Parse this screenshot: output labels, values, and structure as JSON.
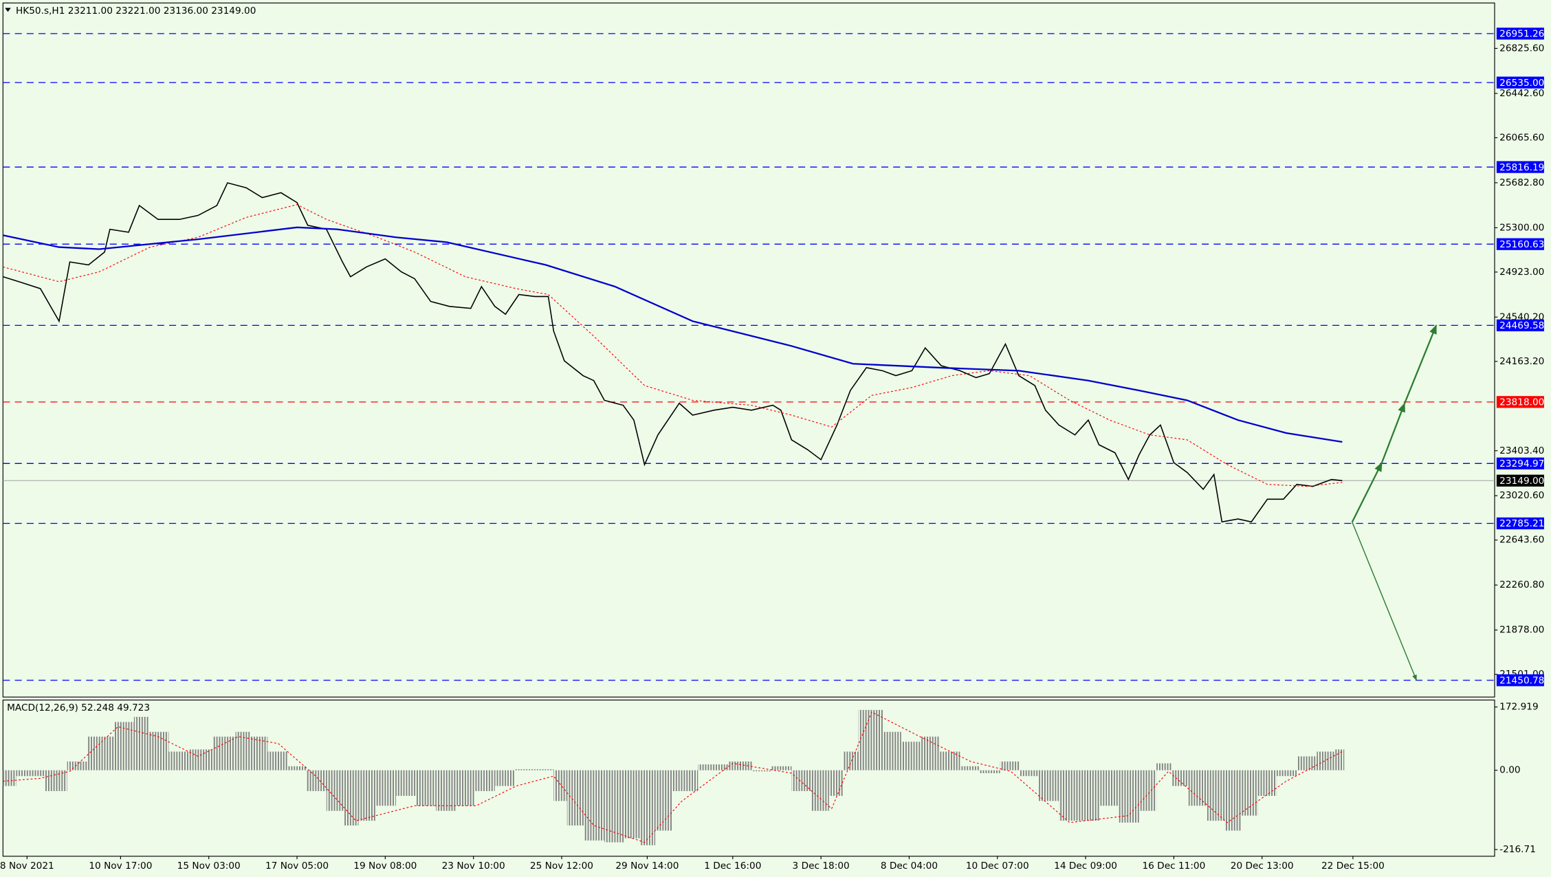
{
  "chart_data": [
    {
      "type": "line",
      "title": "HK50.s,H1  23211.00 23221.00 23136.00 23149.00",
      "xlim": [
        0,
        558
      ],
      "ylim": [
        21308,
        27212
      ],
      "xticks": [
        {
          "value": 9,
          "label": "8 Nov 2021"
        },
        {
          "value": 44,
          "label": "10 Nov 17:00"
        },
        {
          "value": 77,
          "label": "15 Nov 03:00"
        },
        {
          "value": 110,
          "label": "17 Nov 05:00"
        },
        {
          "value": 143,
          "label": "19 Nov 08:00"
        },
        {
          "value": 176,
          "label": "23 Nov 10:00"
        },
        {
          "value": 209,
          "label": "25 Nov 12:00"
        },
        {
          "value": 241,
          "label": "29 Nov 14:00"
        },
        {
          "value": 273,
          "label": "1 Dec 16:00"
        },
        {
          "value": 306,
          "label": "3 Dec 18:00"
        },
        {
          "value": 339,
          "label": "8 Dec 04:00"
        },
        {
          "value": 372,
          "label": "10 Dec 07:00"
        },
        {
          "value": 405,
          "label": "14 Dec 09:00"
        },
        {
          "value": 438,
          "label": "16 Dec 11:00"
        },
        {
          "value": 471,
          "label": "20 Dec 13:00"
        },
        {
          "value": 505,
          "label": "22 Dec 15:00"
        }
      ],
      "yticks": [
        {
          "value": 26825.6,
          "label": "26825.60"
        },
        {
          "value": 26442.6,
          "label": "26442.60"
        },
        {
          "value": 26065.6,
          "label": "26065.60"
        },
        {
          "value": 25682.8,
          "label": "25682.80"
        },
        {
          "value": 25300,
          "label": "25300.00"
        },
        {
          "value": 24923,
          "label": "24923.00"
        },
        {
          "value": 24540.2,
          "label": "24540.20"
        },
        {
          "value": 24163.2,
          "label": "24163.20"
        },
        {
          "value": 23403.4,
          "label": "23403.40"
        },
        {
          "value": 23020.6,
          "label": "23020.60"
        },
        {
          "value": 22643.6,
          "label": "22643.60"
        },
        {
          "value": 22260.8,
          "label": "22260.80"
        },
        {
          "value": 21878,
          "label": "21878.00"
        },
        {
          "value": 21501,
          "label": "21501.00"
        }
      ],
      "levels": [
        {
          "value": 26951.26,
          "color": "#0000ff"
        },
        {
          "value": 26535,
          "label": "26535.00",
          "color": "#0000ff"
        },
        {
          "value": 25816.19,
          "color": "#0000ff"
        },
        {
          "value": 25160.63,
          "color": "#0000ff"
        },
        {
          "value": 24469.58,
          "color": "#0000ff"
        },
        {
          "value": 23818,
          "label": "23818.00",
          "color": "#ff0000"
        },
        {
          "value": 23294.97,
          "color": "#0000ff"
        },
        {
          "value": 22785.21,
          "color": "#0000ff"
        },
        {
          "value": 21450.78,
          "color": "#0000ff"
        }
      ],
      "current": {
        "value": 23149,
        "label": "23149.00",
        "color": "#000000"
      },
      "series": [
        {
          "color": "#000000",
          "style": "solid",
          "width": 1.1,
          "x": [
            0,
            6,
            14,
            21,
            25,
            32,
            38,
            40,
            47,
            51,
            58,
            66,
            73,
            80,
            84,
            91,
            97,
            104,
            110,
            114,
            121,
            127,
            130,
            136,
            143,
            149,
            154,
            160,
            167,
            175,
            179,
            184,
            188,
            193,
            199,
            204,
            206,
            210,
            217,
            221,
            225,
            232,
            236,
            240,
            245,
            253,
            258,
            266,
            273,
            280,
            288,
            291,
            295,
            301,
            306,
            312,
            317,
            323,
            329,
            334,
            340,
            345,
            351,
            358,
            364,
            369,
            375,
            380,
            386,
            390,
            395,
            401,
            406,
            410,
            416,
            421,
            425,
            429,
            433,
            438,
            443,
            449,
            453,
            456,
            462,
            467,
            473,
            479,
            484,
            490,
            497,
            501
          ],
          "values": [
            24883,
            24841,
            24782,
            24505,
            25009,
            24984,
            25093,
            25287,
            25262,
            25489,
            25371,
            25371,
            25405,
            25489,
            25682,
            25640,
            25556,
            25598,
            25514,
            25321,
            25287,
            25009,
            24883,
            24967,
            25035,
            24925,
            24866,
            24673,
            24631,
            24614,
            24799,
            24631,
            24564,
            24732,
            24715,
            24715,
            24421,
            24168,
            24042,
            24000,
            23832,
            23790,
            23664,
            23285,
            23538,
            23807,
            23706,
            23748,
            23773,
            23748,
            23790,
            23748,
            23496,
            23412,
            23327,
            23622,
            23916,
            24110,
            24084,
            24042,
            24084,
            24278,
            24126,
            24084,
            24025,
            24059,
            24311,
            24042,
            23958,
            23748,
            23622,
            23538,
            23664,
            23454,
            23386,
            23159,
            23369,
            23538,
            23622,
            23302,
            23218,
            23075,
            23201,
            22798,
            22823,
            22798,
            22991,
            22991,
            23117,
            23100,
            23159,
            23149
          ]
        },
        {
          "color": "#ff0000",
          "style": "dotted",
          "width": 0.8,
          "x": [
            0,
            21,
            36,
            55,
            73,
            91,
            110,
            121,
            140,
            154,
            173,
            192,
            204,
            221,
            240,
            258,
            280,
            295,
            310,
            325,
            340,
            355,
            369,
            384,
            399,
            414,
            429,
            443,
            458,
            473,
            488,
            501
          ],
          "values": [
            24967,
            24841,
            24925,
            25135,
            25219,
            25388,
            25497,
            25371,
            25219,
            25093,
            24883,
            24782,
            24732,
            24378,
            23958,
            23832,
            23790,
            23706,
            23605,
            23874,
            23941,
            24042,
            24084,
            24042,
            23832,
            23664,
            23538,
            23496,
            23285,
            23117,
            23100,
            23134
          ]
        },
        {
          "color": "#0000cd",
          "style": "solid",
          "width": 1.6,
          "x": [
            0,
            21,
            36,
            73,
            110,
            125,
            147,
            166,
            203,
            229,
            258,
            295,
            318,
            351,
            380,
            406,
            425,
            443,
            462,
            480,
            501
          ],
          "values": [
            25236,
            25135,
            25118,
            25202,
            25303,
            25287,
            25219,
            25177,
            24984,
            24799,
            24505,
            24294,
            24143,
            24109,
            24084,
            24000,
            23916,
            23832,
            23664,
            23554,
            23478
          ]
        }
      ]
    },
    {
      "type": "bar",
      "title": "MACD(12,26,9) 52.248 49.723",
      "xlim": [
        0,
        558
      ],
      "ylim": [
        -235,
        192
      ],
      "yticks": [
        172.919,
        {
          "value": 0,
          "label": "0.00"
        },
        -216.71
      ],
      "color": "#808080",
      "x": [
        0,
        10,
        21,
        27,
        36,
        47,
        51,
        58,
        66,
        73,
        84,
        90,
        95,
        103,
        110,
        117,
        125,
        130,
        136,
        143,
        151,
        158,
        166,
        173,
        180,
        188,
        195,
        204,
        208,
        214,
        221,
        229,
        236,
        241,
        247,
        254,
        266,
        277,
        284,
        291,
        299,
        306,
        312,
        317,
        323,
        327,
        332,
        340,
        347,
        354,
        362,
        369,
        377,
        384,
        391,
        399,
        406,
        414,
        421,
        429,
        434,
        440,
        447,
        454,
        460,
        466,
        473,
        480,
        488,
        495,
        501
      ],
      "values": [
        -43,
        -16,
        -57,
        24,
        92,
        132,
        146,
        105,
        51,
        57,
        92,
        105,
        92,
        51,
        11,
        -57,
        -111,
        -151,
        -138,
        -97,
        -70,
        -97,
        -111,
        -97,
        -57,
        -43,
        3,
        3,
        -84,
        -151,
        -192,
        -197,
        -186,
        -205,
        -165,
        -57,
        16,
        24,
        -3,
        11,
        -57,
        -111,
        -70,
        51,
        165,
        165,
        105,
        78,
        92,
        51,
        11,
        -8,
        24,
        -16,
        -84,
        -138,
        -138,
        -97,
        -143,
        -111,
        19,
        -43,
        -97,
        -138,
        -165,
        -124,
        -70,
        -16,
        38,
        51,
        57
      ],
      "series": [
        {
          "color": "#ff0000",
          "style": "dotted",
          "width": 0.8,
          "x": [
            0,
            14,
            25,
            43,
            58,
            73,
            88,
            103,
            117,
            132,
            154,
            177,
            192,
            206,
            221,
            240,
            254,
            273,
            295,
            310,
            325,
            343,
            362,
            377,
            399,
            421,
            436,
            458,
            480,
            501
          ],
          "values": [
            -30,
            -22,
            -3,
            119,
            92,
            38,
            92,
            73,
            -16,
            -138,
            -97,
            -97,
            -43,
            -16,
            -151,
            -197,
            -84,
            19,
            -8,
            -105,
            159,
            92,
            24,
            -3,
            -143,
            -124,
            -3,
            -143,
            -30,
            51
          ]
        }
      ]
    }
  ]
}
